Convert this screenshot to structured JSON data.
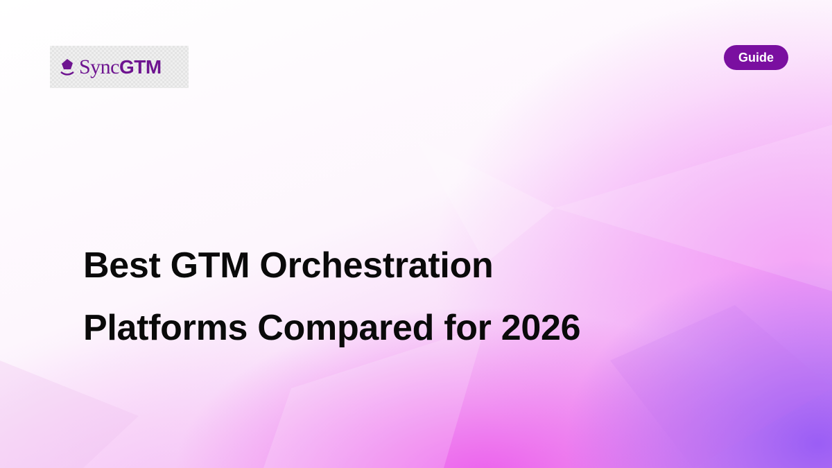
{
  "logo": {
    "text_sync": "Sync",
    "text_gtm": "GTM",
    "color": "#6e1490"
  },
  "badge": {
    "label": "Guide",
    "color": "#7a0fa0"
  },
  "title": {
    "line1": "Best GTM Orchestration",
    "line2": "Platforms Compared for 2026"
  }
}
